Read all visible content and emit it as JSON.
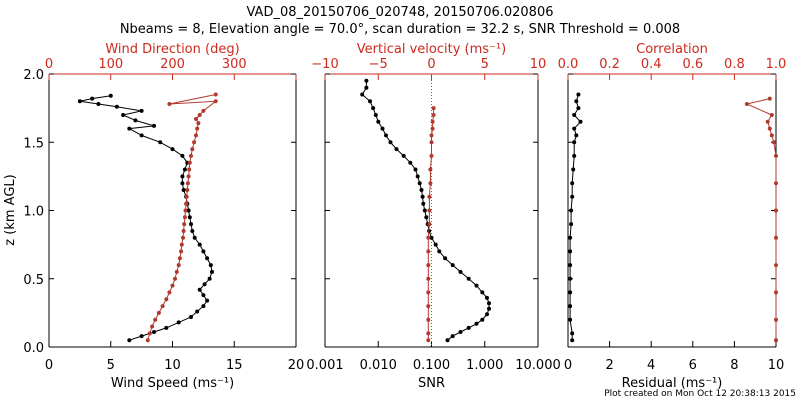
{
  "header": {
    "title_line1": "VAD_08_20150706_020748, 20150706.020806",
    "title_line2": "Nbeams = 8, Elevation angle = 70.0°, scan duration = 32.2 s, SNR Threshold = 0.008"
  },
  "footer": {
    "credit": "Plot created on Mon Oct 12 20:38:13 2015"
  },
  "colors": {
    "black_series": "#000000",
    "red_series": "#b03a2e",
    "red_axis": "#cc2a1e",
    "zero_line": "#d04040"
  },
  "chart_data": [
    {
      "id": "wind",
      "type": "line",
      "ylabel": "z (km AGL)",
      "ylim": [
        0,
        2
      ],
      "yticks": [
        "0.0",
        "0.5",
        "1.0",
        "1.5",
        "2.0"
      ],
      "bottom_axis": {
        "label": "Wind Speed (ms⁻¹)",
        "lim": [
          0,
          20
        ],
        "ticks": [
          "0",
          "5",
          "10",
          "15",
          "20"
        ]
      },
      "top_axis": {
        "label": "Wind Direction (deg)",
        "lim": [
          0,
          400
        ],
        "ticks": [
          "0",
          "100",
          "200",
          "300"
        ]
      },
      "series": [
        {
          "name": "Wind Speed",
          "axis": "bottom",
          "color": "#000000",
          "points": [
            [
              6.5,
              0.05
            ],
            [
              7.5,
              0.08
            ],
            [
              8.5,
              0.11
            ],
            [
              9.5,
              0.14
            ],
            [
              10.5,
              0.18
            ],
            [
              11.5,
              0.22
            ],
            [
              12,
              0.26
            ],
            [
              12.5,
              0.3
            ],
            [
              12.8,
              0.34
            ],
            [
              12.5,
              0.38
            ],
            [
              12.2,
              0.42
            ],
            [
              12.6,
              0.46
            ],
            [
              13,
              0.5
            ],
            [
              13.2,
              0.55
            ],
            [
              13.1,
              0.6
            ],
            [
              12.8,
              0.65
            ],
            [
              12.5,
              0.7
            ],
            [
              12.2,
              0.75
            ],
            [
              11.8,
              0.8
            ],
            [
              11.6,
              0.85
            ],
            [
              11.5,
              0.9
            ],
            [
              11.4,
              0.95
            ],
            [
              11.3,
              1.0
            ],
            [
              11.2,
              1.05
            ],
            [
              11.1,
              1.1
            ],
            [
              10.9,
              1.15
            ],
            [
              10.8,
              1.2
            ],
            [
              10.8,
              1.25
            ],
            [
              11,
              1.3
            ],
            [
              11.2,
              1.35
            ],
            [
              10.8,
              1.4
            ],
            [
              10,
              1.45
            ],
            [
              9,
              1.5
            ],
            [
              7.5,
              1.55
            ],
            [
              6.5,
              1.6
            ],
            [
              8.5,
              1.62
            ],
            [
              7,
              1.66
            ],
            [
              6,
              1.7
            ],
            [
              7.5,
              1.73
            ],
            [
              5.5,
              1.76
            ],
            [
              4,
              1.78
            ],
            [
              2.5,
              1.8
            ],
            [
              3.5,
              1.82
            ],
            [
              5,
              1.84
            ]
          ]
        },
        {
          "name": "Wind Direction",
          "axis": "top",
          "color": "#b03a2e",
          "points": [
            [
              160,
              0.05
            ],
            [
              163,
              0.1
            ],
            [
              167,
              0.15
            ],
            [
              172,
              0.2
            ],
            [
              178,
              0.25
            ],
            [
              184,
              0.3
            ],
            [
              190,
              0.35
            ],
            [
              195,
              0.4
            ],
            [
              200,
              0.45
            ],
            [
              204,
              0.5
            ],
            [
              207,
              0.55
            ],
            [
              210,
              0.6
            ],
            [
              212,
              0.65
            ],
            [
              214,
              0.7
            ],
            [
              215,
              0.75
            ],
            [
              217,
              0.8
            ],
            [
              218,
              0.85
            ],
            [
              219,
              0.9
            ],
            [
              220,
              0.95
            ],
            [
              221,
              1.0
            ],
            [
              222,
              1.05
            ],
            [
              223,
              1.1
            ],
            [
              224,
              1.15
            ],
            [
              225,
              1.2
            ],
            [
              226,
              1.25
            ],
            [
              227,
              1.3
            ],
            [
              228,
              1.35
            ],
            [
              230,
              1.4
            ],
            [
              232,
              1.45
            ],
            [
              235,
              1.5
            ],
            [
              238,
              1.55
            ],
            [
              240,
              1.6
            ],
            [
              242,
              1.64
            ],
            [
              238,
              1.67
            ],
            [
              244,
              1.7
            ],
            [
              250,
              1.73
            ],
            [
              270,
              1.8
            ],
            [
              195,
              1.78
            ],
            [
              270,
              1.85
            ]
          ]
        }
      ]
    },
    {
      "id": "vertical",
      "type": "line",
      "ylim": [
        0,
        2
      ],
      "bottom_axis": {
        "label": "SNR",
        "scale": "log",
        "lim": [
          0.001,
          10
        ],
        "ticks": [
          "0.001",
          "0.010",
          "0.100",
          "1.000",
          "10.000"
        ]
      },
      "top_axis": {
        "label": "Vertical velocity (ms⁻¹)",
        "lim": [
          -10,
          10
        ],
        "ticks": [
          "−10",
          "−5",
          "0",
          "5",
          "10"
        ]
      },
      "series": [
        {
          "name": "SNR",
          "axis": "bottom",
          "color": "#000000",
          "points": [
            [
              0.2,
              0.05
            ],
            [
              0.25,
              0.08
            ],
            [
              0.35,
              0.11
            ],
            [
              0.5,
              0.14
            ],
            [
              0.7,
              0.17
            ],
            [
              0.9,
              0.2
            ],
            [
              1.1,
              0.24
            ],
            [
              1.2,
              0.28
            ],
            [
              1.2,
              0.32
            ],
            [
              1.1,
              0.36
            ],
            [
              0.9,
              0.4
            ],
            [
              0.7,
              0.45
            ],
            [
              0.5,
              0.5
            ],
            [
              0.35,
              0.55
            ],
            [
              0.25,
              0.6
            ],
            [
              0.18,
              0.65
            ],
            [
              0.14,
              0.7
            ],
            [
              0.12,
              0.75
            ],
            [
              0.1,
              0.8
            ],
            [
              0.09,
              0.85
            ],
            [
              0.085,
              0.9
            ],
            [
              0.08,
              0.95
            ],
            [
              0.075,
              1.0
            ],
            [
              0.07,
              1.05
            ],
            [
              0.068,
              1.1
            ],
            [
              0.065,
              1.15
            ],
            [
              0.06,
              1.2
            ],
            [
              0.055,
              1.25
            ],
            [
              0.05,
              1.3
            ],
            [
              0.04,
              1.35
            ],
            [
              0.03,
              1.4
            ],
            [
              0.022,
              1.45
            ],
            [
              0.017,
              1.5
            ],
            [
              0.014,
              1.55
            ],
            [
              0.012,
              1.6
            ],
            [
              0.01,
              1.65
            ],
            [
              0.009,
              1.7
            ],
            [
              0.008,
              1.75
            ],
            [
              0.007,
              1.8
            ],
            [
              0.005,
              1.85
            ],
            [
              0.006,
              1.9
            ],
            [
              0.006,
              1.95
            ]
          ]
        },
        {
          "name": "Vertical velocity",
          "axis": "top",
          "color": "#b03a2e",
          "points": [
            [
              -0.3,
              0.05
            ],
            [
              -0.3,
              0.1
            ],
            [
              -0.3,
              0.2
            ],
            [
              -0.3,
              0.3
            ],
            [
              -0.3,
              0.4
            ],
            [
              -0.3,
              0.5
            ],
            [
              -0.3,
              0.6
            ],
            [
              -0.3,
              0.7
            ],
            [
              -0.3,
              0.8
            ],
            [
              -0.2,
              0.9
            ],
            [
              -0.2,
              1.0
            ],
            [
              -0.2,
              1.1
            ],
            [
              -0.1,
              1.2
            ],
            [
              -0.1,
              1.3
            ],
            [
              0,
              1.4
            ],
            [
              0,
              1.5
            ],
            [
              0,
              1.55
            ],
            [
              0.1,
              1.6
            ],
            [
              0.1,
              1.65
            ],
            [
              0.2,
              1.7
            ],
            [
              0.2,
              1.75
            ]
          ]
        }
      ],
      "reference_line": {
        "axis": "top",
        "value": 0
      }
    },
    {
      "id": "correlation",
      "type": "line",
      "ylim": [
        0,
        2
      ],
      "bottom_axis": {
        "label": "Residual (ms⁻¹)",
        "lim": [
          0,
          10
        ],
        "ticks": [
          "0",
          "2",
          "4",
          "6",
          "8",
          "10"
        ]
      },
      "top_axis": {
        "label": "Correlation",
        "lim": [
          0,
          1
        ],
        "ticks": [
          "0.0",
          "0.2",
          "0.4",
          "0.6",
          "0.8",
          "1.0"
        ]
      },
      "series": [
        {
          "name": "Residual",
          "axis": "bottom",
          "color": "#000000",
          "points": [
            [
              0.2,
              0.05
            ],
            [
              0.2,
              0.1
            ],
            [
              0.1,
              0.2
            ],
            [
              0.1,
              0.3
            ],
            [
              0.1,
              0.4
            ],
            [
              0.1,
              0.5
            ],
            [
              0.1,
              0.6
            ],
            [
              0.1,
              0.7
            ],
            [
              0.1,
              0.8
            ],
            [
              0.15,
              0.9
            ],
            [
              0.15,
              1.0
            ],
            [
              0.2,
              1.1
            ],
            [
              0.2,
              1.2
            ],
            [
              0.25,
              1.3
            ],
            [
              0.3,
              1.4
            ],
            [
              0.3,
              1.5
            ],
            [
              0.4,
              1.55
            ],
            [
              0.3,
              1.6
            ],
            [
              0.6,
              1.65
            ],
            [
              0.3,
              1.7
            ],
            [
              0.5,
              1.75
            ],
            [
              0.4,
              1.8
            ],
            [
              0.5,
              1.85
            ]
          ]
        },
        {
          "name": "Correlation",
          "axis": "top",
          "color": "#b03a2e",
          "points": [
            [
              1.0,
              0.05
            ],
            [
              1.0,
              0.2
            ],
            [
              1.0,
              0.4
            ],
            [
              1.0,
              0.6
            ],
            [
              1.0,
              0.8
            ],
            [
              1.0,
              1.0
            ],
            [
              1.0,
              1.2
            ],
            [
              1.0,
              1.4
            ],
            [
              0.99,
              1.5
            ],
            [
              0.98,
              1.55
            ],
            [
              0.97,
              1.6
            ],
            [
              0.96,
              1.65
            ],
            [
              0.98,
              1.7
            ],
            [
              0.86,
              1.78
            ],
            [
              0.97,
              1.82
            ]
          ]
        }
      ]
    }
  ]
}
